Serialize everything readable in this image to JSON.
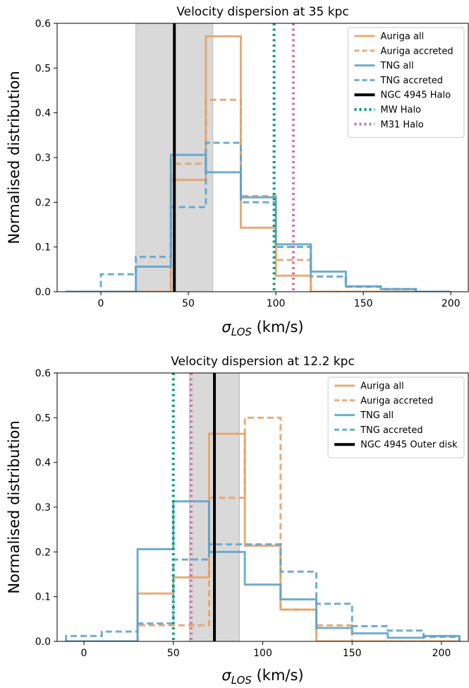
{
  "chart_data": [
    {
      "type": "histogram",
      "title": "Velocity dispersion at 35 kpc",
      "xlabel": "σ",
      "xlabel_sub": "LOS",
      "xlabel_unit": " (km/s)",
      "ylabel": "Normalised distribution",
      "xlim": [
        -25,
        210
      ],
      "ylim": [
        0,
        0.6
      ],
      "xticks": [
        0,
        50,
        100,
        150,
        200
      ],
      "xtick_labels": [
        "0",
        "50",
        "100",
        "150",
        "200"
      ],
      "yticks": [
        0.0,
        0.1,
        0.2,
        0.3,
        0.4,
        0.5,
        0.6
      ],
      "ytick_labels": [
        "0.0",
        "0.1",
        "0.2",
        "0.3",
        "0.4",
        "0.5",
        "0.6"
      ],
      "grid": false,
      "legend_position": "top-right",
      "shaded_band": {
        "x0": 20,
        "x1": 64
      },
      "vlines": [
        {
          "name": "NGC 4945 Halo",
          "x": 42,
          "style": "solid",
          "color": "#000000",
          "legend": true
        },
        {
          "name": "MW Halo",
          "x": 99,
          "style": "dotted",
          "color": "#009E73",
          "legend": true
        },
        {
          "name": "M31 Halo",
          "x": 110,
          "style": "dotted",
          "color": "#CC79A7",
          "legend": true
        }
      ],
      "series": [
        {
          "name": "Auriga all",
          "style": "solid",
          "color": "#E69F62",
          "edges": [
            -20,
            0,
            20,
            40,
            60,
            80,
            100,
            120,
            140,
            160,
            180,
            200
          ],
          "values": [
            0,
            0,
            0,
            0.25,
            0.571,
            0.143,
            0.036,
            0,
            0,
            0,
            0
          ]
        },
        {
          "name": "Auriga accreted",
          "style": "dashed",
          "color": "#E69F62",
          "edges": [
            -20,
            0,
            20,
            40,
            60,
            80,
            100,
            120,
            140,
            160,
            180,
            200
          ],
          "values": [
            0,
            0,
            0,
            0.286,
            0.429,
            0.214,
            0.071,
            0,
            0,
            0,
            0
          ]
        },
        {
          "name": "TNG all",
          "style": "solid",
          "color": "#5BA3C9",
          "edges": [
            -20,
            0,
            20,
            40,
            60,
            80,
            100,
            120,
            140,
            160,
            180,
            200
          ],
          "values": [
            0,
            0,
            0.056,
            0.306,
            0.267,
            0.211,
            0.106,
            0.045,
            0.012,
            0.006,
            0
          ]
        },
        {
          "name": "TNG accreted",
          "style": "dashed",
          "color": "#5BA3C9",
          "edges": [
            -20,
            0,
            20,
            40,
            60,
            80,
            100,
            120,
            140,
            160,
            180,
            200
          ],
          "values": [
            0,
            0.039,
            0.078,
            0.189,
            0.333,
            0.2,
            0.1,
            0.034,
            0.011,
            0.006,
            0
          ]
        }
      ]
    },
    {
      "type": "histogram",
      "title": "Velocity dispersion at 12.2 kpc",
      "xlabel": "σ",
      "xlabel_sub": "LOS",
      "xlabel_unit": " (km/s)",
      "ylabel": "Normalised distribution",
      "xlim": [
        -15,
        215
      ],
      "ylim": [
        0,
        0.6
      ],
      "xticks": [
        0,
        50,
        100,
        150,
        200
      ],
      "xtick_labels": [
        "0",
        "50",
        "100",
        "150",
        "200"
      ],
      "yticks": [
        0.0,
        0.1,
        0.2,
        0.3,
        0.4,
        0.5,
        0.6
      ],
      "ytick_labels": [
        "0.0",
        "0.1",
        "0.2",
        "0.3",
        "0.4",
        "0.5",
        "0.6"
      ],
      "grid": false,
      "legend_position": "top-right",
      "shaded_band": {
        "x0": 59,
        "x1": 87
      },
      "vlines": [
        {
          "name": "NGC 4945 Outer disk",
          "x": 73,
          "style": "solid",
          "color": "#000000",
          "legend": true
        },
        {
          "name": "MW Halo",
          "x": 50,
          "style": "dotted",
          "color": "#009E73",
          "legend": false
        },
        {
          "name": "M31 Halo",
          "x": 60,
          "style": "dotted",
          "color": "#CC79A7",
          "legend": false
        }
      ],
      "series": [
        {
          "name": "Auriga all",
          "style": "solid",
          "color": "#E69F62",
          "edges": [
            -10,
            10,
            30,
            50,
            70,
            90,
            110,
            130,
            150,
            170,
            190,
            210
          ],
          "values": [
            0,
            0,
            0.107,
            0.143,
            0.464,
            0.214,
            0.071,
            0,
            0,
            0,
            0
          ]
        },
        {
          "name": "Auriga accreted",
          "style": "dashed",
          "color": "#E69F62",
          "edges": [
            -10,
            10,
            30,
            50,
            70,
            90,
            110,
            130,
            150,
            170,
            190,
            210
          ],
          "values": [
            0,
            0,
            0.036,
            0.036,
            0.321,
            0.5,
            0.071,
            0.036,
            0,
            0,
            0
          ]
        },
        {
          "name": "TNG all",
          "style": "solid",
          "color": "#5BA3C9",
          "edges": [
            -10,
            10,
            30,
            50,
            70,
            90,
            110,
            130,
            150,
            170,
            190,
            210
          ],
          "values": [
            0,
            0,
            0.206,
            0.313,
            0.2,
            0.127,
            0.094,
            0.03,
            0.018,
            0.008,
            0.012
          ]
        },
        {
          "name": "TNG accreted",
          "style": "dashed",
          "color": "#5BA3C9",
          "edges": [
            -10,
            10,
            30,
            50,
            70,
            90,
            110,
            130,
            150,
            170,
            190,
            210
          ],
          "values": [
            0.012,
            0.022,
            0.04,
            0.183,
            0.217,
            0.217,
            0.156,
            0.084,
            0.034,
            0.024,
            0.01
          ]
        }
      ]
    }
  ]
}
